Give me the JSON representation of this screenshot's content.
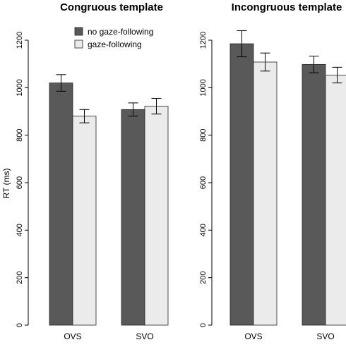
{
  "ylabel": "RT (ms)",
  "legend": {
    "position": "top-center",
    "entries": [
      {
        "label": "no gaze-following",
        "color": "#595959"
      },
      {
        "label": "gaze-following",
        "color": "#ebebeb"
      }
    ]
  },
  "chart_data": [
    {
      "type": "bar",
      "title": "Congruous template",
      "categories": [
        "OVS",
        "SVO"
      ],
      "ylim": [
        0,
        1200
      ],
      "yticks": [
        0,
        200,
        400,
        600,
        800,
        1000,
        1200
      ],
      "grid": false,
      "series": [
        {
          "name": "no gaze-following",
          "color": "#595959",
          "values": [
            1020,
            908
          ],
          "errors": [
            35,
            28
          ]
        },
        {
          "name": "gaze-following",
          "color": "#ebebeb",
          "values": [
            880,
            922
          ],
          "errors": [
            28,
            33
          ]
        }
      ]
    },
    {
      "type": "bar",
      "title": "Incongruous template",
      "categories": [
        "OVS",
        "SVO"
      ],
      "ylim": [
        0,
        1200
      ],
      "yticks": [
        0,
        200,
        400,
        600,
        800,
        1000,
        1200
      ],
      "grid": false,
      "series": [
        {
          "name": "no gaze-following",
          "color": "#595959",
          "values": [
            1185,
            1098
          ],
          "errors": [
            55,
            35
          ]
        },
        {
          "name": "gaze-following",
          "color": "#ebebeb",
          "values": [
            1108,
            1053
          ],
          "errors": [
            38,
            33
          ]
        }
      ]
    }
  ]
}
